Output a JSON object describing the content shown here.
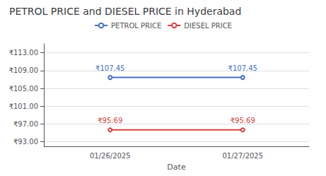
{
  "chart_data": {
    "type": "line",
    "title": "PETROL PRICE and DIESEL PRICE in Hyderabad",
    "xlabel": "Date",
    "categories": [
      "01/26/2025",
      "01/27/2025"
    ],
    "series": [
      {
        "name": "PETROL PRICE",
        "color": "#4472C4",
        "values": [
          107.45,
          107.45
        ],
        "value_labels": [
          "₹107.45",
          "₹107.45"
        ]
      },
      {
        "name": "DIESEL PRICE",
        "color": "#D94040",
        "values": [
          95.69,
          95.69
        ],
        "value_labels": [
          "₹95.69",
          "₹95.69"
        ]
      }
    ],
    "ylim": [
      92.0,
      115.0
    ],
    "yticks": [
      {
        "value": 93.0,
        "label": "₹93.00"
      },
      {
        "value": 97.0,
        "label": "₹97.00"
      },
      {
        "value": 101.0,
        "label": "₹101.00"
      },
      {
        "value": 105.0,
        "label": "₹105.00"
      },
      {
        "value": 109.0,
        "label": "₹109.00"
      },
      {
        "value": 113.0,
        "label": "₹113.00"
      }
    ],
    "grid": true,
    "legend": "top",
    "data_labels": true
  }
}
